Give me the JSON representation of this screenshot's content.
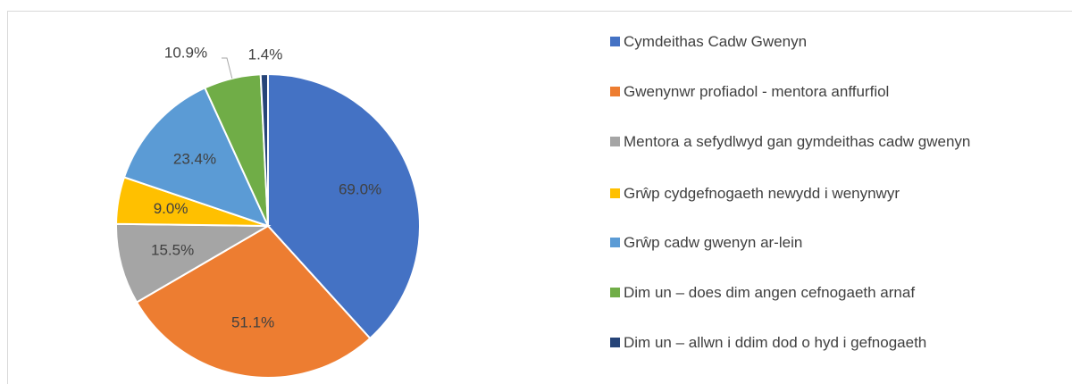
{
  "chart_data": {
    "type": "pie",
    "categories": [
      "Cymdeithas Cadw Gwenyn",
      "Gwenynwr profiadol - mentora anffurfiol",
      "Mentora a sefydlwyd gan gymdeithas cadw gwenyn",
      "Grŵp cydgefnogaeth newydd i wenynwyr",
      "Grŵp cadw gwenyn ar-lein",
      "Dim un – does dim angen cefnogaeth arnaf",
      "Dim un – allwn i ddim dod o hyd i gefnogaeth"
    ],
    "values": [
      69.0,
      51.1,
      15.5,
      9.0,
      23.4,
      10.9,
      1.4
    ],
    "value_labels": [
      "69.0%",
      "51.1%",
      "15.5%",
      "9.0%",
      "23.4%",
      "10.9%",
      "1.4%"
    ],
    "colors": [
      "#4472c4",
      "#ed7d31",
      "#a5a5a5",
      "#ffc000",
      "#5b9bd5",
      "#70ad47",
      "#264478"
    ],
    "legend": "right"
  }
}
